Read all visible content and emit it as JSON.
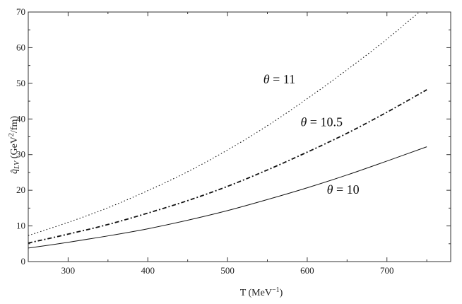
{
  "chart_data": {
    "type": "line",
    "title": "",
    "xlabel": "T (MeV⁻¹)",
    "ylabel": "q̂LV (GeV²/fm)",
    "xlim": [
      250,
      780
    ],
    "ylim": [
      0,
      70
    ],
    "x_ticks": [
      300,
      400,
      500,
      600,
      700
    ],
    "y_ticks": [
      0,
      10,
      20,
      30,
      40,
      50,
      60,
      70
    ],
    "grid": false,
    "series": [
      {
        "name": "θ = 10",
        "style": "solid",
        "x": [
          250,
          300,
          350,
          400,
          450,
          500,
          550,
          600,
          650,
          700,
          750
        ],
        "y": [
          3.8,
          5.4,
          7.2,
          9.2,
          11.6,
          14.3,
          17.4,
          20.7,
          24.3,
          28.2,
          32.2
        ]
      },
      {
        "name": "θ = 10.5",
        "style": "dashdot",
        "x": [
          250,
          300,
          350,
          400,
          450,
          500,
          550,
          600,
          650,
          700,
          750
        ],
        "y": [
          5.2,
          7.7,
          10.4,
          13.6,
          17.1,
          21.1,
          25.7,
          30.7,
          36.0,
          41.9,
          48.2
        ]
      },
      {
        "name": "θ = 11",
        "style": "dotted",
        "x": [
          250,
          300,
          350,
          400,
          450,
          500,
          550,
          600,
          650,
          700,
          750
        ],
        "y": [
          7.3,
          11.0,
          15.1,
          19.9,
          25.2,
          31.3,
          38.1,
          45.7,
          53.8,
          62.4,
          71.8
        ]
      }
    ],
    "annotations": [
      {
        "text": "θ = 11",
        "x": 565,
        "y": 50
      },
      {
        "text": "θ = 10.5",
        "x": 618,
        "y": 38
      },
      {
        "text": "θ = 10",
        "x": 645,
        "y": 19
      }
    ]
  }
}
